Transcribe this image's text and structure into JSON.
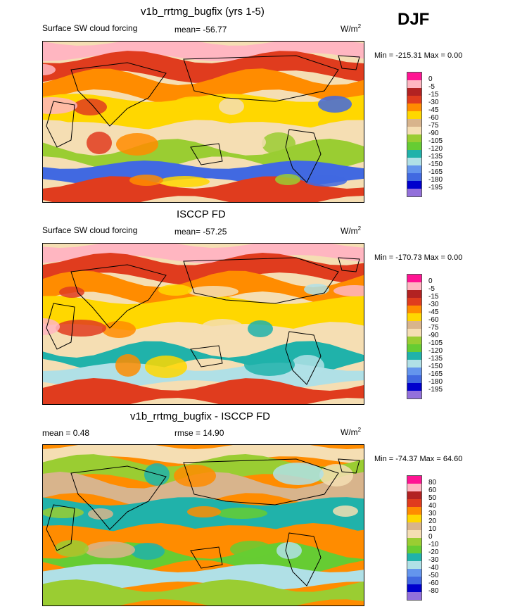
{
  "season": "DJF",
  "panels": [
    {
      "title": "v1b_rrtmg_bugfix (yrs 1-5)",
      "left": "Surface SW cloud forcing",
      "center": "mean= -56.77",
      "units": "W/m",
      "units_sup": "2",
      "minmax": "Min = -215.31 Max =   0.00",
      "colorbar": {
        "labels": [
          "0",
          "-5",
          "-15",
          "-30",
          "-45",
          "-60",
          "-75",
          "-90",
          "-105",
          "-120",
          "-135",
          "-150",
          "-165",
          "-180",
          "-195"
        ],
        "colors": [
          "#ff1493",
          "#ffb6c1",
          "#b22222",
          "#e03c1e",
          "#ff8c00",
          "#ffd700",
          "#d8b48c",
          "#f5deb3",
          "#9acd32",
          "#66cc33",
          "#20b2aa",
          "#b0e0e6",
          "#6495ed",
          "#4169e1",
          "#0000cd",
          "#9370db"
        ]
      },
      "map_colors": [
        "#ffb6c1",
        "#e03c1e",
        "#ff8c00",
        "#ffd700",
        "#f5deb3",
        "#9acd32",
        "#4169e1"
      ]
    },
    {
      "title": "ISCCP FD",
      "left": "Surface SW cloud forcing",
      "center": "mean= -57.25",
      "units": "W/m",
      "units_sup": "2",
      "minmax": "Min = -170.73 Max =   0.00",
      "colorbar": {
        "labels": [
          "0",
          "-5",
          "-15",
          "-30",
          "-45",
          "-60",
          "-75",
          "-90",
          "-105",
          "-120",
          "-135",
          "-150",
          "-165",
          "-180",
          "-195"
        ],
        "colors": [
          "#ff1493",
          "#ffb6c1",
          "#b22222",
          "#e03c1e",
          "#ff8c00",
          "#ffd700",
          "#d8b48c",
          "#f5deb3",
          "#9acd32",
          "#66cc33",
          "#20b2aa",
          "#b0e0e6",
          "#6495ed",
          "#4169e1",
          "#0000cd",
          "#9370db"
        ]
      },
      "map_colors": [
        "#ffb6c1",
        "#e03c1e",
        "#ff8c00",
        "#ffd700",
        "#f5deb3",
        "#20b2aa",
        "#b0e0e6"
      ]
    },
    {
      "title": "v1b_rrtmg_bugfix - ISCCP FD",
      "left": "mean =   0.48",
      "center": "rmse =  14.90",
      "units": "W/m",
      "units_sup": "2",
      "minmax": "Min = -74.37 Max =  64.60",
      "colorbar": {
        "labels": [
          "80",
          "60",
          "50",
          "40",
          "30",
          "20",
          "10",
          "0",
          "-10",
          "-20",
          "-30",
          "-40",
          "-50",
          "-60",
          "-80"
        ],
        "colors": [
          "#ff1493",
          "#ffb6c1",
          "#b22222",
          "#e03c1e",
          "#ff8c00",
          "#ffd700",
          "#d8b48c",
          "#f5deb3",
          "#9acd32",
          "#66cc33",
          "#20b2aa",
          "#b0e0e6",
          "#6495ed",
          "#4169e1",
          "#0000cd",
          "#9370db"
        ]
      },
      "map_colors": [
        "#f5deb3",
        "#9acd32",
        "#d8b48c",
        "#20b2aa",
        "#ff8c00",
        "#66cc33",
        "#b0e0e6"
      ]
    }
  ],
  "chart_data": [
    {
      "type": "heatmap",
      "title": "v1b_rrtmg_bugfix (yrs 1-5)",
      "variable": "Surface SW cloud forcing",
      "units": "W/m2",
      "mean": -56.77,
      "min": -215.31,
      "max": 0.0,
      "levels": [
        0,
        -5,
        -15,
        -30,
        -45,
        -60,
        -75,
        -90,
        -105,
        -120,
        -135,
        -150,
        -165,
        -180,
        -195
      ]
    },
    {
      "type": "heatmap",
      "title": "ISCCP FD",
      "variable": "Surface SW cloud forcing",
      "units": "W/m2",
      "mean": -57.25,
      "min": -170.73,
      "max": 0.0,
      "levels": [
        0,
        -5,
        -15,
        -30,
        -45,
        -60,
        -75,
        -90,
        -105,
        -120,
        -135,
        -150,
        -165,
        -180,
        -195
      ]
    },
    {
      "type": "heatmap",
      "title": "v1b_rrtmg_bugfix - ISCCP FD",
      "units": "W/m2",
      "mean": 0.48,
      "rmse": 14.9,
      "min": -74.37,
      "max": 64.6,
      "levels": [
        80,
        60,
        50,
        40,
        30,
        20,
        10,
        0,
        -10,
        -20,
        -30,
        -40,
        -50,
        -60,
        -80
      ]
    }
  ]
}
